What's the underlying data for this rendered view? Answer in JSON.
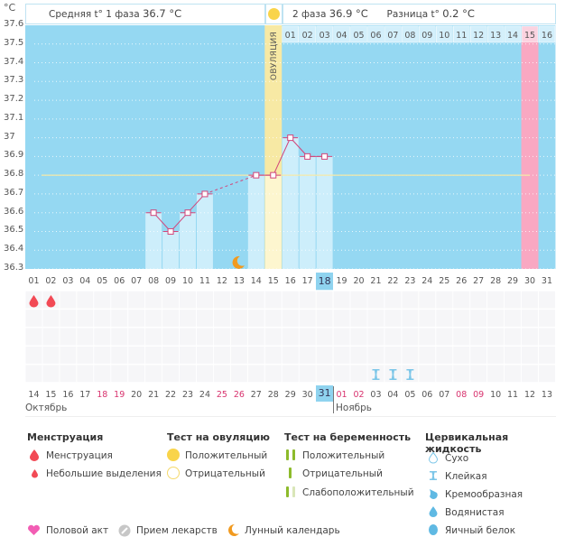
{
  "header": {
    "unit": "°C",
    "phase1_label": "Средняя t° 1 фаза",
    "phase1_value": "36.7 °C",
    "phase2_label": "2 фаза",
    "phase2_value": "36.9 °C",
    "diff_label": "Разница t°",
    "diff_value": "0.2 °C",
    "ovulation_label": "ОВУЛЯЦИЯ"
  },
  "colors": {
    "chart_bg": "#95d8f2",
    "bar_fill": "#cdeefb",
    "ovulation": "#f7e9a4",
    "period_pink": "#f9a8c2",
    "line": "#d2457a",
    "coverline": "#f5e9a8",
    "today": "#8fd3ef"
  },
  "chart_data": {
    "type": "line",
    "title": "",
    "ylabel": "°C",
    "xlabel": "",
    "ylim": [
      36.3,
      37.6
    ],
    "y_ticks": [
      "37.6",
      "37.5",
      "37.4",
      "37.3",
      "37.2",
      "37.1",
      "37",
      "36.9",
      "36.8",
      "36.7",
      "36.6",
      "36.5",
      "36.4",
      "36.3"
    ],
    "cycle_days": [
      "01",
      "02",
      "03",
      "04",
      "05",
      "06",
      "07",
      "08",
      "09",
      "10",
      "11",
      "12",
      "13",
      "14",
      "15",
      "16",
      "17",
      "18",
      "19",
      "20",
      "21",
      "22",
      "23",
      "24",
      "25",
      "26",
      "27",
      "28",
      "29",
      "30",
      "31"
    ],
    "phase2_days": [
      "01",
      "02",
      "03",
      "04",
      "05",
      "06",
      "07",
      "08",
      "09",
      "10",
      "11",
      "12",
      "13",
      "14",
      "15",
      "16"
    ],
    "series": [
      {
        "name": "Базальная температура",
        "points": [
          {
            "day": 8,
            "value": 36.6
          },
          {
            "day": 9,
            "value": 36.5
          },
          {
            "day": 10,
            "value": 36.6
          },
          {
            "day": 11,
            "value": 36.7
          },
          {
            "day": 14,
            "value": 36.8
          },
          {
            "day": 15,
            "value": 36.8
          },
          {
            "day": 16,
            "value": 37.0
          },
          {
            "day": 17,
            "value": 36.9
          },
          {
            "day": 18,
            "value": 36.9
          }
        ]
      }
    ],
    "coverline": 36.8,
    "ovulation_day": 15,
    "highlight_day": 30,
    "today_day": 18,
    "moon_day": 13,
    "grid": true
  },
  "events": {
    "menstruation_days": [
      1,
      2
    ],
    "sticky_fluid_days": [
      21,
      22,
      23
    ]
  },
  "calendar": {
    "dates": [
      {
        "d": "14",
        "red": false
      },
      {
        "d": "15",
        "red": false
      },
      {
        "d": "16",
        "red": false
      },
      {
        "d": "17",
        "red": false
      },
      {
        "d": "18",
        "red": true
      },
      {
        "d": "19",
        "red": true
      },
      {
        "d": "20",
        "red": false
      },
      {
        "d": "21",
        "red": false
      },
      {
        "d": "22",
        "red": false
      },
      {
        "d": "23",
        "red": false
      },
      {
        "d": "24",
        "red": false
      },
      {
        "d": "25",
        "red": true
      },
      {
        "d": "26",
        "red": true
      },
      {
        "d": "27",
        "red": false
      },
      {
        "d": "28",
        "red": false
      },
      {
        "d": "29",
        "red": false
      },
      {
        "d": "30",
        "red": false
      },
      {
        "d": "31",
        "red": false
      },
      {
        "d": "01",
        "red": true
      },
      {
        "d": "02",
        "red": true
      },
      {
        "d": "03",
        "red": false
      },
      {
        "d": "04",
        "red": false
      },
      {
        "d": "05",
        "red": false
      },
      {
        "d": "06",
        "red": false
      },
      {
        "d": "07",
        "red": false
      },
      {
        "d": "08",
        "red": true
      },
      {
        "d": "09",
        "red": true
      },
      {
        "d": "10",
        "red": false
      },
      {
        "d": "11",
        "red": false
      },
      {
        "d": "12",
        "red": false
      },
      {
        "d": "13",
        "red": false
      }
    ],
    "month1": "Октябрь",
    "month2": "Ноябрь"
  },
  "legend": {
    "menstruation": {
      "title": "Менструация",
      "items": [
        "Менструация",
        "Небольшие выделения"
      ]
    },
    "ovulation_test": {
      "title": "Тест на овуляцию",
      "items": [
        "Положительный",
        "Отрицательный"
      ]
    },
    "pregnancy_test": {
      "title": "Тест на беременность",
      "items": [
        "Положительный",
        "Отрицательный",
        "Слабоположительный"
      ]
    },
    "cervical_fluid": {
      "title": "Цервикальная жидкость",
      "items": [
        "Сухо",
        "Клейкая",
        "Кремообразная",
        "Водянистая",
        "Яичный белок"
      ]
    },
    "other": [
      "Половой акт",
      "Прием лекарств",
      "Лунный календарь"
    ]
  }
}
